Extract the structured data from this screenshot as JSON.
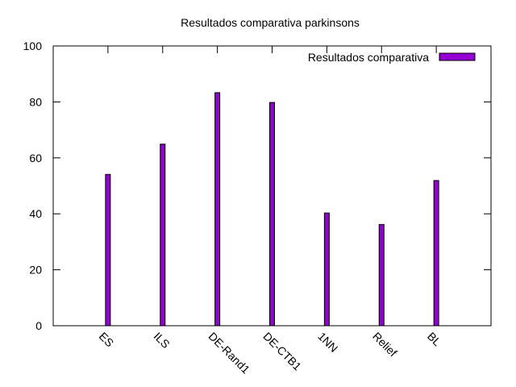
{
  "chart_data": {
    "type": "bar",
    "title": "Resultados comparativa parkinsons",
    "xlabel": "",
    "ylabel": "",
    "categories": [
      "ES",
      "ILS",
      "DE-Rand1",
      "DE-CTB1",
      "1NN",
      "Relief",
      "BL"
    ],
    "series": [
      {
        "name": "Resultados comparativa",
        "values": [
          54.1,
          64.9,
          83.3,
          79.8,
          40.3,
          36.2,
          51.9
        ]
      }
    ],
    "ylim": [
      0,
      100
    ],
    "yticks": [
      0,
      20,
      40,
      60,
      80,
      100
    ],
    "grid": false,
    "legend_position": "top-right",
    "colors": {
      "bar": "#9400d3",
      "axis": "#000000",
      "background": "#ffffff"
    }
  }
}
